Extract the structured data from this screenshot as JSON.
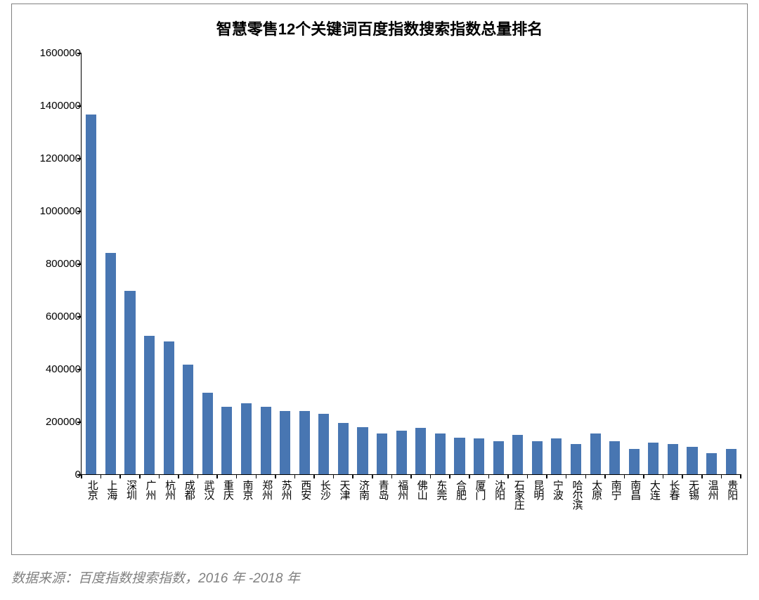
{
  "chart": {
    "type": "bar",
    "title": "智慧零售12个关键词百度指数搜索指数总量排名",
    "title_fontsize": 22,
    "title_fontweight": "bold",
    "title_color": "#000000",
    "background_color": "#ffffff",
    "border_color": "#808080",
    "axis_color": "#000000",
    "bar_color": "#4876b2",
    "bar_width_ratio": 0.55,
    "label_fontsize": 15,
    "ylim": [
      0,
      1600000
    ],
    "ytick_step": 200000,
    "yticks": [
      0,
      200000,
      400000,
      600000,
      800000,
      1000000,
      1200000,
      1400000,
      1600000
    ],
    "categories": [
      "北京",
      "上海",
      "深圳",
      "广州",
      "杭州",
      "成都",
      "武汉",
      "重庆",
      "南京",
      "郑州",
      "苏州",
      "西安",
      "长沙",
      "天津",
      "济南",
      "青岛",
      "福州",
      "佛山",
      "东莞",
      "合肥",
      "厦门",
      "沈阳",
      "石家庄",
      "昆明",
      "宁波",
      "哈尔滨",
      "太原",
      "南宁",
      "南昌",
      "大连",
      "长春",
      "无锡",
      "温州",
      "贵阳"
    ],
    "values": [
      1365000,
      840000,
      695000,
      525000,
      505000,
      415000,
      310000,
      255000,
      270000,
      255000,
      240000,
      240000,
      230000,
      195000,
      180000,
      155000,
      165000,
      175000,
      155000,
      140000,
      135000,
      125000,
      150000,
      125000,
      135000,
      115000,
      155000,
      125000,
      95000,
      120000,
      115000,
      105000,
      80000,
      95000
    ]
  },
  "source_note": "数据来源：百度指数搜索指数，2016 年 -2018 年",
  "source_note_color": "#808080",
  "source_note_fontsize": 19
}
